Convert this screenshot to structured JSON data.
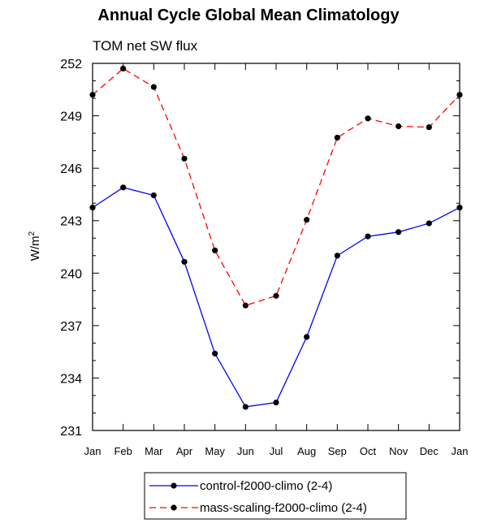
{
  "chart_data": {
    "type": "line",
    "title": "Annual Cycle Global Mean Climatology",
    "subtitle": "TOM net SW flux",
    "ylabel": "W/m",
    "ylabel_sup": "2",
    "categories": [
      "Jan",
      "Feb",
      "Mar",
      "Apr",
      "May",
      "Jun",
      "Jul",
      "Aug",
      "Sep",
      "Oct",
      "Nov",
      "Dec",
      "Jan"
    ],
    "ylim": [
      231,
      252
    ],
    "yticks": [
      231,
      234,
      237,
      240,
      243,
      246,
      249,
      252
    ],
    "grid": false,
    "legend_position": "bottom-center",
    "series": [
      {
        "name": "control-f2000-climo (2-4)",
        "color": "#0000ff",
        "dash": "solid",
        "values": [
          243.75,
          244.9,
          244.45,
          240.65,
          235.4,
          232.35,
          232.6,
          236.35,
          241.0,
          242.1,
          242.35,
          242.85,
          243.75
        ]
      },
      {
        "name": "mass-scaling-f2000-climo (2-4)",
        "color": "#ff0000",
        "dash": "dashed",
        "values": [
          250.2,
          251.7,
          250.65,
          246.55,
          241.3,
          238.15,
          238.7,
          243.05,
          247.75,
          248.85,
          248.4,
          248.35,
          250.2
        ]
      }
    ]
  }
}
